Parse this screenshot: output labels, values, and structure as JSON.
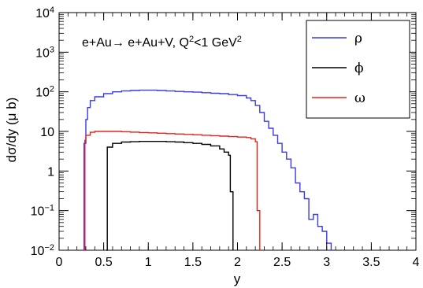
{
  "chart_data": {
    "type": "line",
    "xlabel": "y",
    "ylabel": "dσ/dy (μ b)",
    "annotation": "e+Au→ e+Au+V, Q²<1 GeV²",
    "xlim": [
      0,
      4
    ],
    "ylim": [
      0.01,
      10000
    ],
    "yscale": "log",
    "grid": false,
    "legend_position": "top-right",
    "x_tick_labels": [
      "0",
      "0.5",
      "1",
      "1.5",
      "2",
      "2.5",
      "3",
      "3.5",
      "4"
    ],
    "y_tick_labels": [
      {
        "value": 0.01,
        "base": "10",
        "exp": "−2"
      },
      {
        "value": 0.1,
        "base": "10",
        "exp": "−1"
      },
      {
        "value": 1,
        "base": "1",
        "exp": ""
      },
      {
        "value": 10,
        "base": "10",
        "exp": ""
      },
      {
        "value": 100,
        "base": "10",
        "exp": "2"
      },
      {
        "value": 1000,
        "base": "10",
        "exp": "3"
      },
      {
        "value": 10000,
        "base": "10",
        "exp": "4"
      }
    ],
    "series": [
      {
        "name": "ρ",
        "color": "#3a3ae8",
        "x": [
          0.27,
          0.28,
          0.3,
          0.32,
          0.35,
          0.4,
          0.5,
          0.6,
          0.7,
          0.8,
          0.9,
          1.0,
          1.1,
          1.2,
          1.3,
          1.4,
          1.5,
          1.6,
          1.7,
          1.8,
          1.9,
          2.0,
          2.1,
          2.15,
          2.2,
          2.25,
          2.3,
          2.35,
          2.4,
          2.45,
          2.5,
          2.55,
          2.6,
          2.65,
          2.7,
          2.75,
          2.8,
          2.85,
          2.9,
          2.95,
          3.0,
          3.05
        ],
        "values": [
          0.01,
          5,
          20,
          40,
          60,
          75,
          90,
          100,
          105,
          108,
          110,
          110,
          108,
          105,
          102,
          100,
          98,
          95,
          92,
          90,
          85,
          80,
          70,
          60,
          45,
          30,
          18,
          12,
          8,
          5,
          3,
          2,
          1.2,
          0.5,
          0.3,
          0.2,
          0.06,
          0.08,
          0.04,
          0.03,
          0.015,
          0.01
        ]
      },
      {
        "name": "ϕ",
        "color": "#000000",
        "x": [
          0.53,
          0.54,
          0.6,
          0.7,
          0.8,
          0.9,
          1.0,
          1.1,
          1.2,
          1.3,
          1.4,
          1.5,
          1.6,
          1.7,
          1.8,
          1.85,
          1.9,
          1.92,
          1.95
        ],
        "values": [
          0.01,
          4,
          5,
          5.4,
          5.5,
          5.6,
          5.6,
          5.6,
          5.5,
          5.4,
          5.2,
          5.0,
          4.7,
          4.3,
          3.6,
          3.0,
          2.5,
          0.3,
          0.01
        ]
      },
      {
        "name": "ω",
        "color": "#e8221c",
        "x": [
          0.28,
          0.29,
          0.3,
          0.35,
          0.4,
          0.5,
          0.6,
          0.7,
          0.8,
          0.9,
          1.0,
          1.1,
          1.2,
          1.3,
          1.4,
          1.5,
          1.6,
          1.7,
          1.8,
          1.9,
          2.0,
          2.1,
          2.15,
          2.2,
          2.22,
          2.25
        ],
        "values": [
          0.01,
          6,
          8,
          9.5,
          10,
          10,
          10,
          9.8,
          9.6,
          9.4,
          9.2,
          9.0,
          8.8,
          8.6,
          8.4,
          8.2,
          8.0,
          7.8,
          7.6,
          7.4,
          7.2,
          7.0,
          6.5,
          5.5,
          0.1,
          0.01
        ]
      }
    ]
  }
}
